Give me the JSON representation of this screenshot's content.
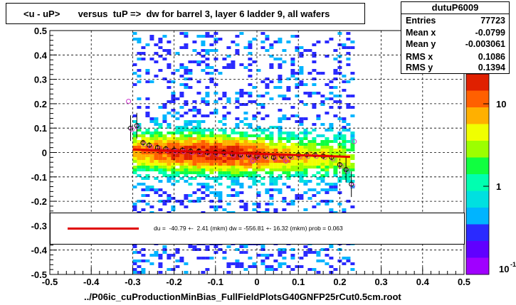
{
  "title": "<u - uP>       versus  tuP =>  dw for barrel 3, layer 6 ladder 9, all wafers",
  "stats": {
    "name": "dutuP6009",
    "rows": [
      {
        "label": "Entries",
        "value": "77723"
      },
      {
        "label": "Mean x",
        "value": "-0.0799"
      },
      {
        "label": "Mean y",
        "value": "-0.003061"
      },
      {
        "label": "RMS x",
        "value": "0.1086"
      },
      {
        "label": "RMS y",
        "value": "0.1394"
      }
    ]
  },
  "fit_text": "du =  -40.79 +-  2.41 (mkm) dw = -556.81 +- 16.32 (mkm) prob = 0.063",
  "x_title": "../P06ic_cuProductionMinBias_FullFieldPlotsG40GNFP25rCut0.5cm.root",
  "colors": {
    "fit_line": "#e00000",
    "frame": "#000000"
  },
  "chart_data": {
    "type": "heatmap",
    "title": "<u - uP>       versus  tuP =>  dw for barrel 3, layer 6 ladder 9, all wafers",
    "xlim": [
      -0.5,
      0.5
    ],
    "ylim": [
      -0.5,
      0.5
    ],
    "x_ticks": [
      "-0.5",
      "-0.4",
      "-0.3",
      "-0.2",
      "-0.1",
      "0",
      "0.1",
      "0.2",
      "0.3",
      "0.4",
      "0.5"
    ],
    "y_ticks": [
      "-0.5",
      "-0.4",
      "-0.3",
      "-0.2",
      "-0.1",
      "0",
      "0.1",
      "0.2",
      "0.3",
      "0.4",
      "0.5"
    ],
    "z_scale": "log",
    "z_ticks": [
      "10",
      "1"
    ],
    "z_tick_values": [
      10,
      1
    ],
    "z_label_bottom": "10",
    "z_label_bottom_exp": "-1",
    "grid": true,
    "data_x_range": [
      -0.3,
      0.23
    ],
    "profile_points": [
      {
        "x": -0.305,
        "y": 0.1
      },
      {
        "x": -0.29,
        "y": 0.11
      },
      {
        "x": -0.275,
        "y": 0.04
      },
      {
        "x": -0.26,
        "y": 0.03
      },
      {
        "x": -0.24,
        "y": 0.02
      },
      {
        "x": -0.22,
        "y": 0.015
      },
      {
        "x": -0.2,
        "y": 0.01
      },
      {
        "x": -0.18,
        "y": 0.01
      },
      {
        "x": -0.16,
        "y": 0.005
      },
      {
        "x": -0.14,
        "y": 0.005
      },
      {
        "x": -0.12,
        "y": 0.0
      },
      {
        "x": -0.1,
        "y": 0.0
      },
      {
        "x": -0.08,
        "y": 0.0
      },
      {
        "x": -0.06,
        "y": -0.005
      },
      {
        "x": -0.04,
        "y": -0.01
      },
      {
        "x": -0.02,
        "y": -0.01
      },
      {
        "x": 0.0,
        "y": -0.015
      },
      {
        "x": 0.02,
        "y": -0.015
      },
      {
        "x": 0.04,
        "y": -0.02
      },
      {
        "x": 0.06,
        "y": -0.015
      },
      {
        "x": 0.08,
        "y": -0.015
      },
      {
        "x": 0.1,
        "y": -0.01
      },
      {
        "x": 0.12,
        "y": -0.01
      },
      {
        "x": 0.14,
        "y": -0.01
      },
      {
        "x": 0.16,
        "y": -0.015
      },
      {
        "x": 0.18,
        "y": -0.02
      },
      {
        "x": 0.2,
        "y": -0.05
      },
      {
        "x": 0.215,
        "y": -0.07
      },
      {
        "x": 0.228,
        "y": -0.13
      }
    ],
    "outlier_points": [
      {
        "x": -0.31,
        "y": 0.21
      },
      {
        "x": 0.235,
        "y": 0.045
      },
      {
        "x": -0.01,
        "y": -0.035
      },
      {
        "x": 0.07,
        "y": -0.035
      }
    ],
    "fit_line": {
      "x": [
        -0.3,
        0.225
      ],
      "y": [
        0.012,
        -0.018
      ]
    }
  }
}
